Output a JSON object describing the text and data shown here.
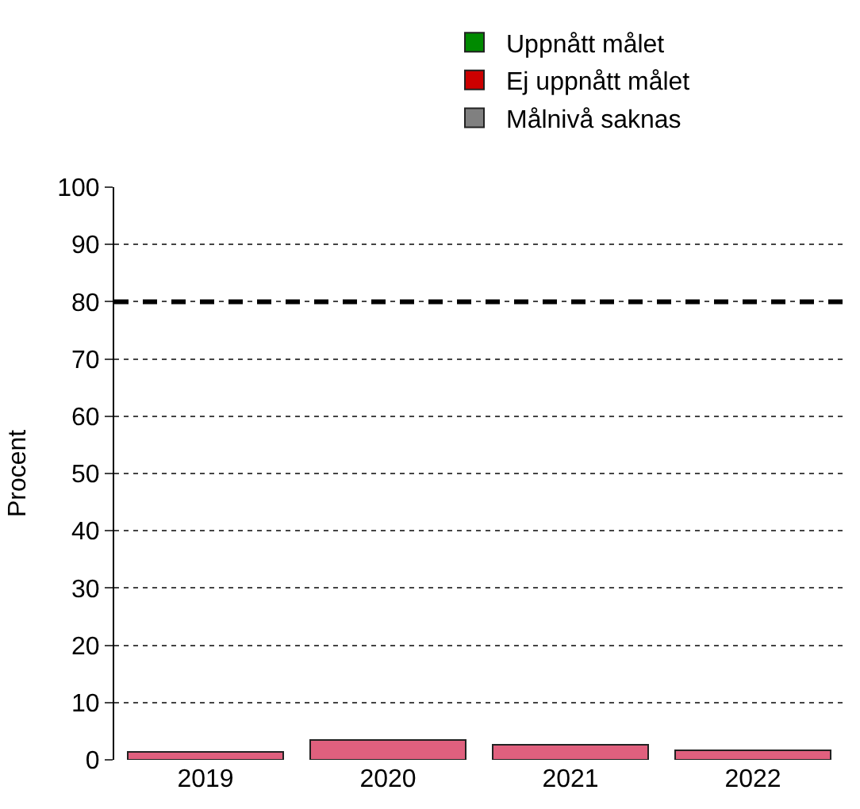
{
  "chart_data": {
    "type": "bar",
    "ylabel": "Procent",
    "categories": [
      "2019",
      "2020",
      "2021",
      "2022"
    ],
    "stacked": true,
    "series": [
      {
        "color": "#e0607e",
        "values": [
          1.4,
          3.5,
          2.7,
          1.6
        ]
      },
      {
        "name": "Uppnått målet",
        "color": "#008a00",
        "values": [
          null,
          null,
          null,
          null
        ]
      },
      {
        "name": "Ej uppnått målet",
        "color": "#cc0000",
        "values": [
          null,
          null,
          null,
          null
        ]
      },
      {
        "name": "Målnivå saknas",
        "color": "#808080",
        "values": [
          null,
          null,
          null,
          null
        ]
      }
    ],
    "ylim": [
      0,
      100
    ],
    "yticks": [
      0,
      10,
      20,
      30,
      40,
      50,
      60,
      70,
      80,
      90,
      100
    ],
    "ref_lines": [
      {
        "axis": "y",
        "value": 80,
        "color": "#000000",
        "line_style": "dashed"
      }
    ],
    "grid": "y",
    "legend": "top"
  }
}
